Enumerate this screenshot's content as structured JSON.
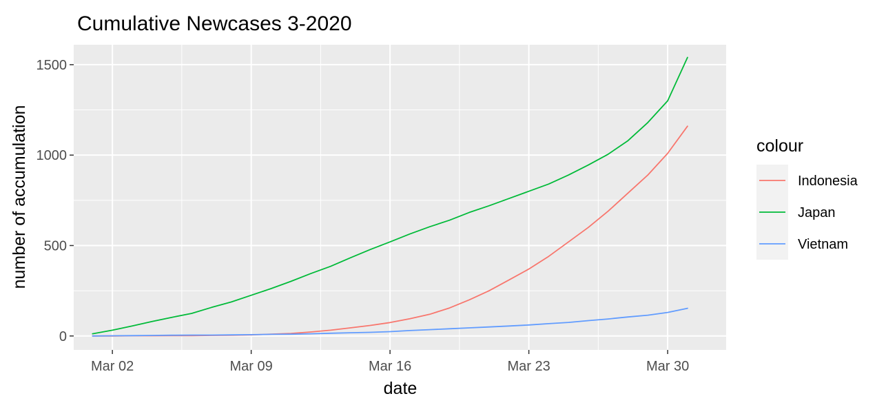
{
  "chart_data": {
    "type": "line",
    "title": "Cumulative Newcases 3-2020",
    "xlabel": "date",
    "ylabel": "number of accumulation",
    "x_tick_labels": [
      "Mar 02",
      "Mar 09",
      "Mar 16",
      "Mar 23",
      "Mar 30"
    ],
    "x_tick_days": [
      2,
      9,
      16,
      23,
      30
    ],
    "y_ticks": [
      0,
      500,
      1000,
      1500
    ],
    "xlim_days": [
      0.05,
      32.95
    ],
    "ylim": [
      -77,
      1610
    ],
    "grid": true,
    "legend": {
      "title": "colour",
      "position": "right"
    },
    "x_days": [
      1,
      2,
      3,
      4,
      5,
      6,
      7,
      8,
      9,
      10,
      11,
      12,
      13,
      14,
      15,
      16,
      17,
      18,
      19,
      20,
      21,
      22,
      23,
      24,
      25,
      26,
      27,
      28,
      29,
      30,
      31
    ],
    "series": [
      {
        "name": "Indonesia",
        "color": "#F8766D",
        "values": [
          0,
          0,
          1,
          1,
          2,
          2,
          3,
          4,
          6,
          10,
          14,
          22,
          32,
          45,
          58,
          74,
          95,
          120,
          155,
          200,
          250,
          310,
          370,
          440,
          520,
          600,
          690,
          790,
          890,
          1010,
          1160
        ]
      },
      {
        "name": "Japan",
        "color": "#00BA38",
        "values": [
          12,
          32,
          55,
          80,
          103,
          125,
          158,
          188,
          225,
          262,
          302,
          345,
          385,
          432,
          478,
          520,
          564,
          604,
          640,
          683,
          720,
          760,
          800,
          840,
          890,
          945,
          1005,
          1080,
          1180,
          1300,
          1540
        ]
      },
      {
        "name": "Vietnam",
        "color": "#619CFF",
        "values": [
          0,
          1,
          2,
          3,
          4,
          5,
          5,
          6,
          7,
          9,
          10,
          12,
          15,
          18,
          20,
          24,
          30,
          35,
          40,
          45,
          50,
          55,
          61,
          68,
          75,
          85,
          94,
          105,
          115,
          130,
          153
        ]
      }
    ]
  }
}
